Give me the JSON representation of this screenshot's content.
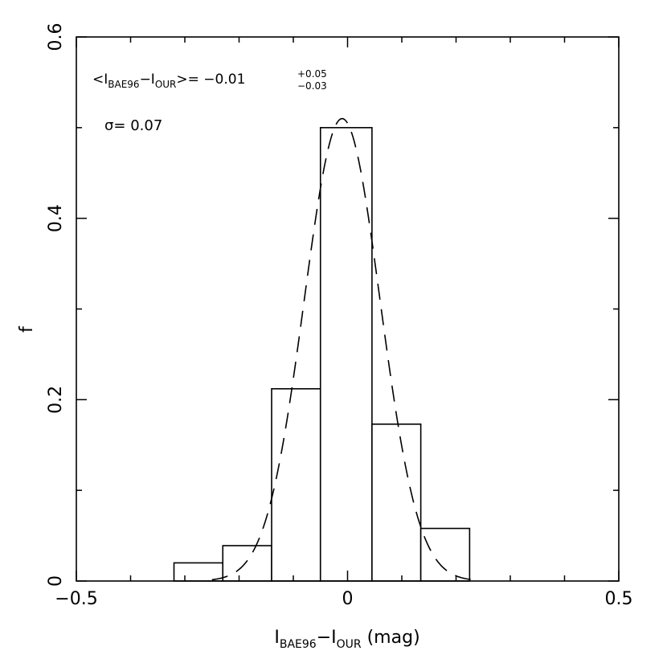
{
  "chart_data": {
    "type": "bar",
    "xlabel": {
      "main": "I",
      "sub1": "BAE96",
      "dash": "−I",
      "sub2": "OUR",
      "unit": " (mag)"
    },
    "ylabel": "f",
    "xlim": [
      -0.5,
      0.5
    ],
    "ylim": [
      0,
      0.6
    ],
    "x_ticks": [
      {
        "value": -0.5,
        "label": "−0.5"
      },
      {
        "value": 0,
        "label": "0"
      },
      {
        "value": 0.5,
        "label": "0.5"
      }
    ],
    "y_ticks": [
      {
        "value": 0,
        "label": "0"
      },
      {
        "value": 0.2,
        "label": "0.2"
      },
      {
        "value": 0.4,
        "label": "0.4"
      },
      {
        "value": 0.6,
        "label": "0.6"
      }
    ],
    "x_minor_step": 0.1,
    "y_minor_step": 0.1,
    "bins": [
      {
        "x0": -0.32,
        "x1": -0.23,
        "value": 0.02
      },
      {
        "x0": -0.23,
        "x1": -0.14,
        "value": 0.039
      },
      {
        "x0": -0.14,
        "x1": -0.05,
        "value": 0.212
      },
      {
        "x0": -0.05,
        "x1": 0.045,
        "value": 0.5
      },
      {
        "x0": 0.045,
        "x1": 0.135,
        "value": 0.173
      },
      {
        "x0": 0.135,
        "x1": 0.225,
        "value": 0.058
      }
    ],
    "gaussian_fit": {
      "mean": -0.01,
      "sigma": 0.07,
      "amplitude": 0.51,
      "style": "dashed"
    },
    "annotations": {
      "mean": {
        "lt": "<I",
        "sub1": "BAE96",
        "dash": "−I",
        "sub2": "OUR",
        "gt": ">= −0.01",
        "sup": "+0.05",
        "sub": "−0.03"
      },
      "sigma": "σ= 0.07"
    }
  }
}
